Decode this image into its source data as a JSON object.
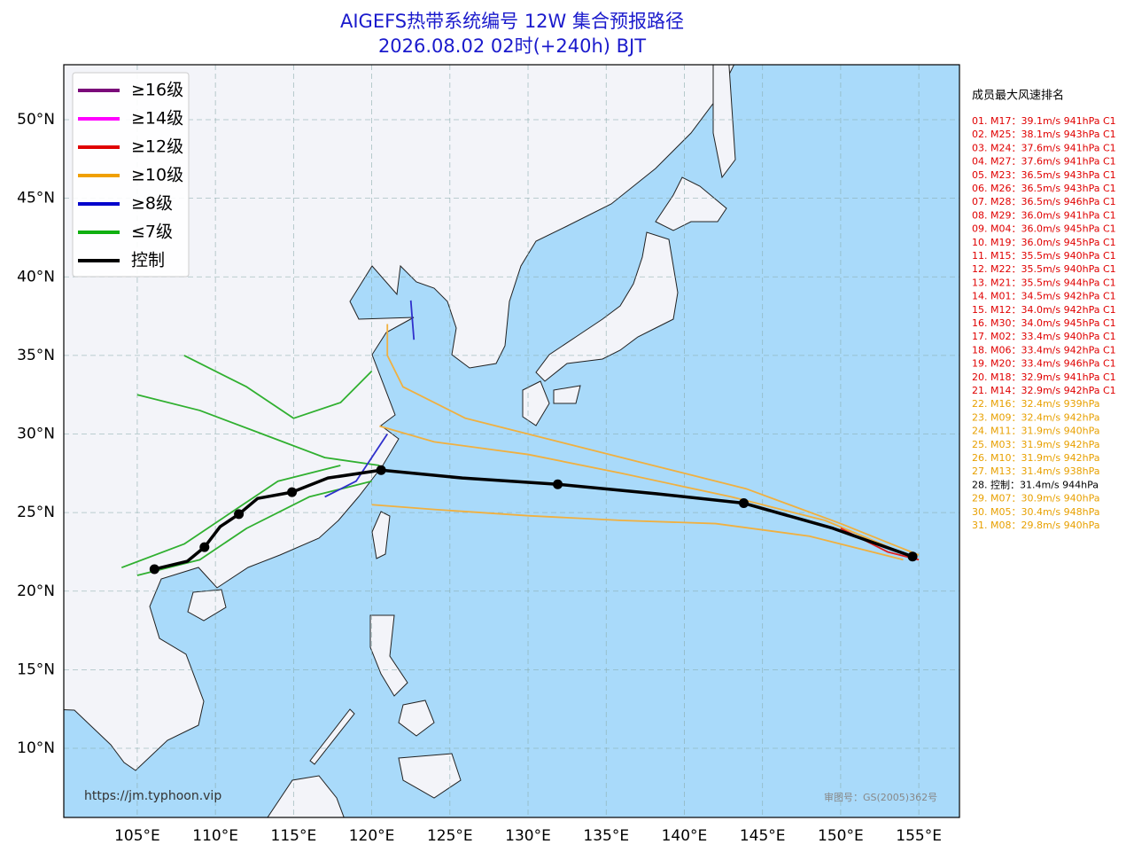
{
  "title": [
    "AIGEFS热带系统编号 12W 集合预报路径",
    "2026.08.02 02时(+240h) BJT"
  ],
  "lonlim": [
    100.3,
    157.6
  ],
  "latlim": [
    5.6,
    53.5
  ],
  "lon_ticks": [
    {
      "value": 105,
      "label": "105°E"
    },
    {
      "value": 110,
      "label": "110°E"
    },
    {
      "value": 115,
      "label": "115°E"
    },
    {
      "value": 120,
      "label": "120°E"
    },
    {
      "value": 125,
      "label": "125°E"
    },
    {
      "value": 130,
      "label": "130°E"
    },
    {
      "value": 135,
      "label": "135°E"
    },
    {
      "value": 140,
      "label": "140°E"
    },
    {
      "value": 145,
      "label": "145°E"
    },
    {
      "value": 150,
      "label": "150°E"
    },
    {
      "value": 155,
      "label": "155°E"
    }
  ],
  "lat_ticks": [
    {
      "value": 10,
      "label": "10°N"
    },
    {
      "value": 15,
      "label": "15°N"
    },
    {
      "value": 20,
      "label": "20°N"
    },
    {
      "value": 25,
      "label": "25°N"
    },
    {
      "value": 30,
      "label": "30°N"
    },
    {
      "value": 35,
      "label": "35°N"
    },
    {
      "value": 40,
      "label": "40°N"
    },
    {
      "value": 45,
      "label": "45°N"
    },
    {
      "value": 50,
      "label": "50°N"
    }
  ],
  "legend": [
    {
      "label": "≥16级",
      "color": "#7a0a7a"
    },
    {
      "label": "≥14级",
      "color": "#ff00ff"
    },
    {
      "label": "≥12级",
      "color": "#e00000"
    },
    {
      "label": "≥10级",
      "color": "#f0a000"
    },
    {
      "label": "≥8级",
      "color": "#0000cc"
    },
    {
      "label": "≤7级",
      "color": "#10b010"
    },
    {
      "label": "控制",
      "color": "#000000"
    }
  ],
  "control_track": {
    "color": "#000000",
    "lon": [
      154.6,
      149.5,
      143.8,
      138.2,
      131.9,
      125.8,
      120.6,
      117.2,
      114.9,
      112.7,
      111.5,
      110.3,
      109.3,
      108.2,
      106.1
    ],
    "lat": [
      22.2,
      24.0,
      25.6,
      26.2,
      26.8,
      27.2,
      27.7,
      27.2,
      26.3,
      25.9,
      24.9,
      24.1,
      22.8,
      21.9,
      21.4
    ]
  },
  "members": [
    {
      "color": "#f0b040",
      "lon": [
        155,
        150,
        144,
        138,
        132,
        126,
        122,
        121,
        121
      ],
      "lat": [
        22.3,
        24.3,
        26.5,
        28,
        29.5,
        31,
        33,
        35,
        37
      ]
    },
    {
      "color": "#f0b040",
      "lon": [
        155,
        149,
        143,
        136,
        130,
        124,
        120.5
      ],
      "lat": [
        22,
        24.5,
        26,
        27.5,
        28.7,
        29.5,
        30.5
      ]
    },
    {
      "color": "#f0b040",
      "lon": [
        154,
        148,
        142,
        136,
        130,
        124,
        120
      ],
      "lat": [
        22,
        23.5,
        24.3,
        24.5,
        24.8,
        25.2,
        25.5
      ]
    },
    {
      "color": "#3030cc",
      "lon": [
        122.5,
        122.7
      ],
      "lat": [
        38.5,
        36
      ]
    },
    {
      "color": "#30b030",
      "lon": [
        120.5,
        117,
        113,
        109,
        105
      ],
      "lat": [
        28,
        28.5,
        30,
        31.5,
        32.5
      ]
    },
    {
      "color": "#30b030",
      "lon": [
        120,
        116,
        112,
        109,
        105
      ],
      "lat": [
        27,
        26,
        24,
        22,
        21
      ]
    },
    {
      "color": "#30b030",
      "lon": [
        118,
        114,
        111,
        108,
        104
      ],
      "lat": [
        28,
        27,
        25,
        23,
        21.5
      ]
    },
    {
      "color": "#30b030",
      "lon": [
        120,
        118,
        115,
        112,
        108
      ],
      "lat": [
        34,
        32,
        31,
        33,
        35
      ]
    },
    {
      "color": "#3030cc",
      "lon": [
        121,
        119,
        117
      ],
      "lat": [
        30,
        27,
        26
      ]
    },
    {
      "color": "#e02020",
      "lon": [
        150,
        153,
        155
      ],
      "lat": [
        24,
        22.5,
        22
      ]
    }
  ],
  "ranking": {
    "title": "成员最大风速排名",
    "items": [
      {
        "text": "01. M17：39.1m/s 941hPa C1",
        "color": "#e00000"
      },
      {
        "text": "02. M25：38.1m/s 943hPa C1",
        "color": "#e00000"
      },
      {
        "text": "03. M24：37.6m/s 941hPa C1",
        "color": "#e00000"
      },
      {
        "text": "04. M27：37.6m/s 941hPa C1",
        "color": "#e00000"
      },
      {
        "text": "05. M23：36.5m/s 943hPa C1",
        "color": "#e00000"
      },
      {
        "text": "06. M26：36.5m/s 943hPa C1",
        "color": "#e00000"
      },
      {
        "text": "07. M28：36.5m/s 946hPa C1",
        "color": "#e00000"
      },
      {
        "text": "08. M29：36.0m/s 941hPa C1",
        "color": "#e00000"
      },
      {
        "text": "09. M04：36.0m/s 945hPa C1",
        "color": "#e00000"
      },
      {
        "text": "10. M19：36.0m/s 945hPa C1",
        "color": "#e00000"
      },
      {
        "text": "11. M15：35.5m/s 940hPa C1",
        "color": "#e00000"
      },
      {
        "text": "12. M22：35.5m/s 940hPa C1",
        "color": "#e00000"
      },
      {
        "text": "13. M21：35.5m/s 944hPa C1",
        "color": "#e00000"
      },
      {
        "text": "14. M01：34.5m/s 942hPa C1",
        "color": "#e00000"
      },
      {
        "text": "15. M12：34.0m/s 942hPa C1",
        "color": "#e00000"
      },
      {
        "text": "16. M30：34.0m/s 945hPa C1",
        "color": "#e00000"
      },
      {
        "text": "17. M02：33.4m/s 940hPa C1",
        "color": "#e00000"
      },
      {
        "text": "18. M06：33.4m/s 942hPa C1",
        "color": "#e00000"
      },
      {
        "text": "19. M20：33.4m/s 946hPa C1",
        "color": "#e00000"
      },
      {
        "text": "20. M18：32.9m/s 941hPa C1",
        "color": "#e00000"
      },
      {
        "text": "21. M14：32.9m/s 942hPa C1",
        "color": "#e00000"
      },
      {
        "text": "22. M16：32.4m/s 939hPa",
        "color": "#e8a000"
      },
      {
        "text": "23. M09：32.4m/s 942hPa",
        "color": "#e8a000"
      },
      {
        "text": "24. M11：31.9m/s 940hPa",
        "color": "#e8a000"
      },
      {
        "text": "25. M03：31.9m/s 942hPa",
        "color": "#e8a000"
      },
      {
        "text": "26. M10：31.9m/s 942hPa",
        "color": "#e8a000"
      },
      {
        "text": "27. M13：31.4m/s 938hPa",
        "color": "#e8a000"
      },
      {
        "text": "28. 控制：31.4m/s 944hPa",
        "color": "#000000"
      },
      {
        "text": "29. M07：30.9m/s 940hPa",
        "color": "#e8a000"
      },
      {
        "text": "30. M05：30.4m/s 948hPa",
        "color": "#e8a000"
      },
      {
        "text": "31. M08：29.8m/s 940hPa",
        "color": "#e8a000"
      }
    ]
  },
  "url": "https://jm.typhoon.vip",
  "approval": "审图号：GS(2005)362号"
}
